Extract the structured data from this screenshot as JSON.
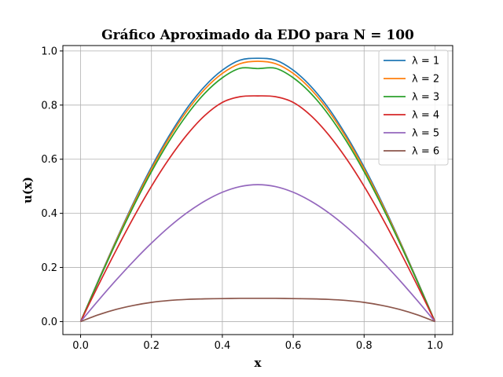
{
  "chart_data": {
    "type": "line",
    "title": "Gráfico Aproximado da EDO para N = 100",
    "xlabel": "x",
    "ylabel": "u(x)",
    "xlim": [
      -0.05,
      1.05
    ],
    "ylim": [
      -0.048,
      1.02
    ],
    "xticks": [
      0.0,
      0.2,
      0.4,
      0.6,
      0.8,
      1.0
    ],
    "xtick_labels": [
      "0.0",
      "0.2",
      "0.4",
      "0.6",
      "0.8",
      "1.0"
    ],
    "yticks": [
      0.0,
      0.2,
      0.4,
      0.6,
      0.8,
      1.0
    ],
    "ytick_labels": [
      "0.0",
      "0.2",
      "0.4",
      "0.6",
      "0.8",
      "1.0"
    ],
    "grid": true,
    "legend_position": "top-right",
    "x": [
      0.0,
      0.05,
      0.1,
      0.15,
      0.2,
      0.25,
      0.3,
      0.35,
      0.4,
      0.45,
      0.5,
      0.55,
      0.6,
      0.65,
      0.7,
      0.75,
      0.8,
      0.85,
      0.9,
      0.95,
      1.0
    ],
    "series": [
      {
        "name": "λ = 1",
        "color": "#1f77b4",
        "values": [
          0.0,
          0.152,
          0.3,
          0.441,
          0.571,
          0.687,
          0.788,
          0.869,
          0.929,
          0.966,
          0.973,
          0.966,
          0.929,
          0.869,
          0.788,
          0.687,
          0.571,
          0.441,
          0.3,
          0.152,
          0.0
        ]
      },
      {
        "name": "λ = 2",
        "color": "#ff7f0e",
        "values": [
          0.0,
          0.15,
          0.297,
          0.436,
          0.564,
          0.679,
          0.778,
          0.858,
          0.917,
          0.953,
          0.962,
          0.953,
          0.917,
          0.858,
          0.778,
          0.679,
          0.564,
          0.436,
          0.297,
          0.15,
          0.0
        ]
      },
      {
        "name": "λ = 3",
        "color": "#2ca02c",
        "values": [
          0.0,
          0.148,
          0.292,
          0.428,
          0.554,
          0.667,
          0.764,
          0.843,
          0.901,
          0.936,
          0.935,
          0.936,
          0.901,
          0.843,
          0.764,
          0.667,
          0.554,
          0.428,
          0.292,
          0.148,
          0.0
        ]
      },
      {
        "name": "λ = 4",
        "color": "#d62728",
        "values": [
          0.0,
          0.134,
          0.263,
          0.386,
          0.5,
          0.602,
          0.69,
          0.761,
          0.81,
          0.831,
          0.834,
          0.831,
          0.81,
          0.761,
          0.69,
          0.602,
          0.5,
          0.386,
          0.263,
          0.134,
          0.0
        ]
      },
      {
        "name": "λ = 5",
        "color": "#9467bd",
        "values": [
          0.0,
          0.078,
          0.153,
          0.224,
          0.29,
          0.35,
          0.402,
          0.445,
          0.478,
          0.499,
          0.506,
          0.499,
          0.478,
          0.445,
          0.402,
          0.35,
          0.29,
          0.224,
          0.153,
          0.078,
          0.0
        ]
      },
      {
        "name": "λ = 6",
        "color": "#8c564b",
        "values": [
          0.0,
          0.025,
          0.045,
          0.06,
          0.071,
          0.078,
          0.082,
          0.084,
          0.085,
          0.086,
          0.086,
          0.086,
          0.085,
          0.084,
          0.082,
          0.078,
          0.071,
          0.06,
          0.045,
          0.025,
          0.0
        ]
      }
    ]
  }
}
